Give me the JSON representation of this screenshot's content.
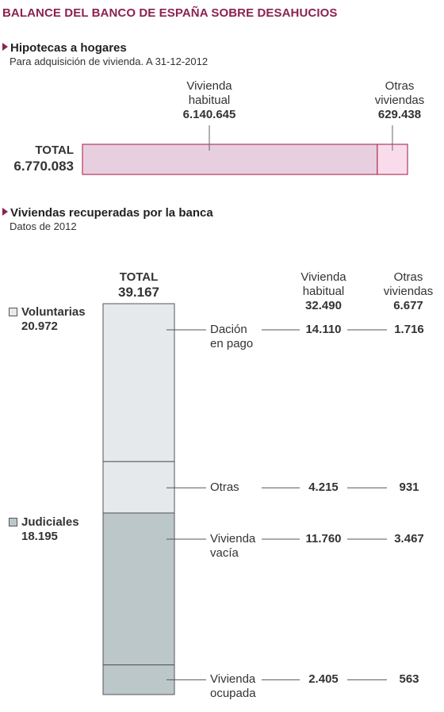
{
  "title": "BALANCE DEL BANCO DE ESPAÑA SOBRE DESAHUCIOS",
  "colors": {
    "title": "#8b2252",
    "pink_main": "#e8cfe0",
    "pink_other": "#f9dcec",
    "pink_border": "#b03a5a",
    "voluntarias": "#e6e9ec",
    "judiciales": "#bcc7ca",
    "stack_border": "#555555",
    "leader": "#555555"
  },
  "chart_data": [
    {
      "type": "bar",
      "orientation": "horizontal-stacked",
      "title": "Hipotecas a hogares",
      "subtitle": "Para adquisición de vivienda. A 31-12-2012",
      "total_label": "TOTAL",
      "total_text": "6.770.083",
      "total": 6770083,
      "segments": [
        {
          "name_line1": "Vivienda",
          "name_line2": "habitual",
          "value": 6140645,
          "value_text": "6.140.645"
        },
        {
          "name_line1": "Otras",
          "name_line2": "viviendas",
          "value": 629438,
          "value_text": "629.438"
        }
      ]
    },
    {
      "type": "bar",
      "orientation": "vertical-stacked",
      "title": "Viviendas recuperadas por la banca",
      "subtitle": "Datos de 2012",
      "total_label": "TOTAL",
      "total_text": "39.167",
      "total": 39167,
      "groups": [
        {
          "name": "Voluntarias",
          "value": 20972,
          "value_text": "20.972"
        },
        {
          "name": "Judiciales",
          "value": 18195,
          "value_text": "18.195"
        }
      ],
      "column_headers": [
        {
          "line1": "Vivienda",
          "line2": "habitual",
          "total_text": "32.490"
        },
        {
          "line1": "Otras",
          "line2": "viviendas",
          "total_text": "6.677"
        }
      ],
      "rows": [
        {
          "group": "Voluntarias",
          "label_line1": "Dación",
          "label_line2": "en pago",
          "value": 15826,
          "value_text": "15.826",
          "habitual": 14110,
          "habitual_text": "14.110",
          "otras": 1716,
          "otras_text": "1.716"
        },
        {
          "group": "Voluntarias",
          "label_line1": "Otras",
          "label_line2": "",
          "value": 5146,
          "value_text": "5.146",
          "habitual": 4215,
          "habitual_text": "4.215",
          "otras": 931,
          "otras_text": "931"
        },
        {
          "group": "Judiciales",
          "label_line1": "Vivienda",
          "label_line2": "vacía",
          "value": 15227,
          "value_text": "15.227",
          "habitual": 11760,
          "habitual_text": "11.760",
          "otras": 3467,
          "otras_text": "3.467"
        },
        {
          "group": "Judiciales",
          "label_line1": "Vivienda",
          "label_line2": "ocupada",
          "value": 2968,
          "value_text": "2.968",
          "habitual": 2405,
          "habitual_text": "2.405",
          "otras": 563,
          "otras_text": "563"
        }
      ]
    }
  ]
}
